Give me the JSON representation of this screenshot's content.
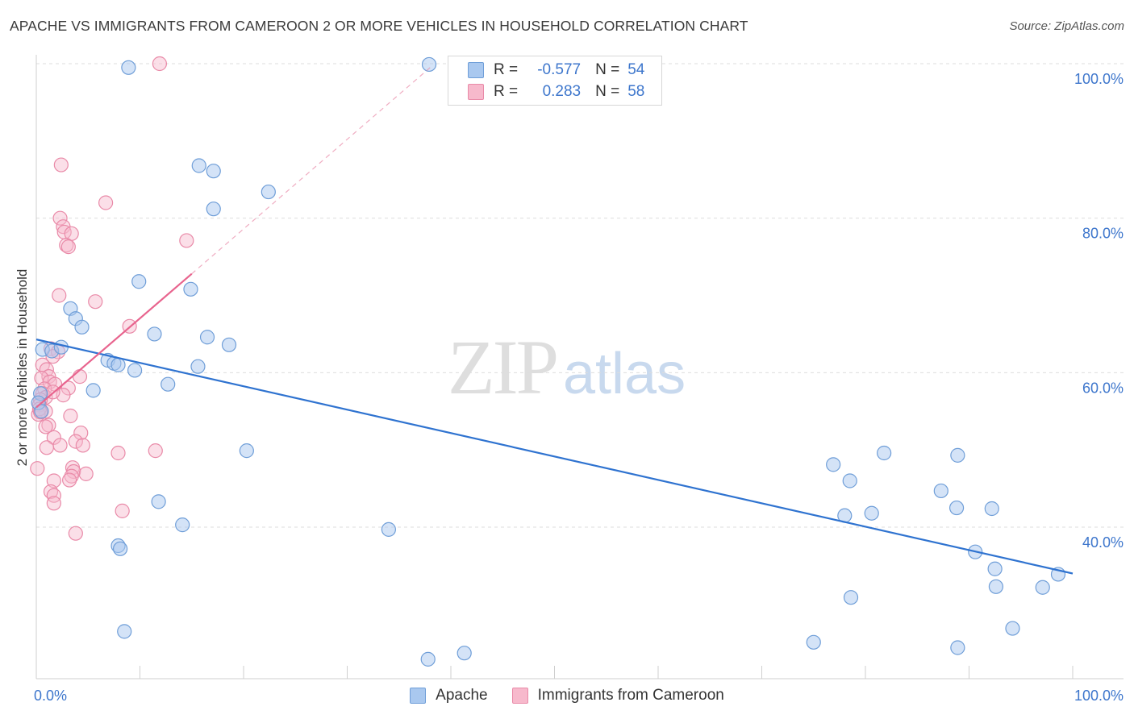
{
  "title": "APACHE VS IMMIGRANTS FROM CAMEROON 2 OR MORE VEHICLES IN HOUSEHOLD CORRELATION CHART",
  "source": "Source: ZipAtlas.com",
  "watermark": {
    "zip": "ZIP",
    "atlas": "atlas"
  },
  "colors": {
    "apache_fill": "#a9c8ef",
    "apache_stroke": "#6f9ed8",
    "apache_line": "#2f73d0",
    "cameroon_fill": "#f7b9cc",
    "cameroon_stroke": "#e98aa8",
    "cameroon_line": "#e8648e",
    "tick_text": "#3d76cc",
    "grid": "#dddddd"
  },
  "legend": {
    "rows": [
      {
        "r_label": "R =",
        "r_value": "-0.577",
        "n_label": "N =",
        "n_value": "54"
      },
      {
        "r_label": "R =",
        "r_value": "0.283",
        "n_label": "N =",
        "n_value": "58"
      }
    ]
  },
  "bottom_legend": {
    "apache": "Apache",
    "cameroon": "Immigrants from Cameroon"
  },
  "chart_data": {
    "type": "scatter",
    "title": "APACHE VS IMMIGRANTS FROM CAMEROON 2 OR MORE VEHICLES IN HOUSEHOLD CORRELATION CHART",
    "xlabel": "",
    "ylabel": "2 or more Vehicles in Household",
    "xlim": [
      0,
      100
    ],
    "ylim": [
      20,
      102
    ],
    "x_ticks": [
      0,
      10,
      20,
      30,
      40,
      50,
      60,
      70,
      80,
      90,
      100
    ],
    "x_tick_labels": [
      "0.0%",
      "100.0%"
    ],
    "y_ticks": [
      40,
      60,
      80,
      100
    ],
    "y_tick_labels": [
      "40.0%",
      "60.0%",
      "80.0%",
      "100.0%"
    ],
    "grid": "horizontal dashed",
    "legend_position": "top-center",
    "series": [
      {
        "name": "Apache",
        "r": -0.577,
        "n": 54,
        "trend": {
          "x": [
            0,
            100
          ],
          "y": [
            64.3,
            34.0
          ]
        },
        "points": [
          [
            8.9,
            99.5
          ],
          [
            37.9,
            99.9
          ],
          [
            15.7,
            86.8
          ],
          [
            17.1,
            86.1
          ],
          [
            22.4,
            83.4
          ],
          [
            17.1,
            81.2
          ],
          [
            9.9,
            71.8
          ],
          [
            14.9,
            70.8
          ],
          [
            3.3,
            68.3
          ],
          [
            3.8,
            67.0
          ],
          [
            4.4,
            65.9
          ],
          [
            11.4,
            65.0
          ],
          [
            16.5,
            64.6
          ],
          [
            18.6,
            63.6
          ],
          [
            0.6,
            63.0
          ],
          [
            1.5,
            62.8
          ],
          [
            2.4,
            63.3
          ],
          [
            6.9,
            61.6
          ],
          [
            7.5,
            61.2
          ],
          [
            7.9,
            61.0
          ],
          [
            9.5,
            60.3
          ],
          [
            15.6,
            60.8
          ],
          [
            12.7,
            58.5
          ],
          [
            5.5,
            57.7
          ],
          [
            0.4,
            57.3
          ],
          [
            0.2,
            56.1
          ],
          [
            0.5,
            55.0
          ],
          [
            20.3,
            49.9
          ],
          [
            11.8,
            43.3
          ],
          [
            14.1,
            40.3
          ],
          [
            34.0,
            39.7
          ],
          [
            7.9,
            37.6
          ],
          [
            8.1,
            37.2
          ],
          [
            8.5,
            26.5
          ],
          [
            37.8,
            22.9
          ],
          [
            41.3,
            23.7
          ],
          [
            75.0,
            25.1
          ],
          [
            76.9,
            48.1
          ],
          [
            78.5,
            46.0
          ],
          [
            81.8,
            49.6
          ],
          [
            78.0,
            41.5
          ],
          [
            80.6,
            41.8
          ],
          [
            87.3,
            44.7
          ],
          [
            88.9,
            49.3
          ],
          [
            88.8,
            42.5
          ],
          [
            92.2,
            42.4
          ],
          [
            90.6,
            36.8
          ],
          [
            92.5,
            34.6
          ],
          [
            92.6,
            32.3
          ],
          [
            97.1,
            32.2
          ],
          [
            98.6,
            33.9
          ],
          [
            94.2,
            26.9
          ],
          [
            88.9,
            24.4
          ],
          [
            78.6,
            30.9
          ]
        ]
      },
      {
        "name": "Immigrants from Cameroon",
        "r": 0.283,
        "n": 58,
        "trend": {
          "x": [
            0,
            15
          ],
          "y": [
            55.5,
            72.8
          ]
        },
        "trend_extension": {
          "x": [
            15,
            38
          ],
          "y": [
            72.8,
            99.5
          ]
        },
        "points": [
          [
            11.9,
            100.0
          ],
          [
            2.4,
            86.9
          ],
          [
            6.7,
            82.0
          ],
          [
            2.3,
            80.0
          ],
          [
            2.6,
            78.9
          ],
          [
            2.7,
            78.2
          ],
          [
            3.4,
            78.0
          ],
          [
            2.9,
            76.5
          ],
          [
            3.1,
            76.3
          ],
          [
            14.5,
            77.1
          ],
          [
            2.2,
            70.0
          ],
          [
            5.7,
            69.2
          ],
          [
            9.0,
            66.0
          ],
          [
            1.4,
            63.1
          ],
          [
            2.1,
            62.7
          ],
          [
            1.6,
            62.1
          ],
          [
            0.6,
            61.0
          ],
          [
            1.0,
            60.4
          ],
          [
            1.2,
            59.5
          ],
          [
            0.5,
            59.3
          ],
          [
            4.2,
            59.5
          ],
          [
            1.3,
            58.8
          ],
          [
            1.8,
            58.5
          ],
          [
            3.1,
            58.0
          ],
          [
            0.8,
            57.9
          ],
          [
            0.6,
            57.3
          ],
          [
            2.6,
            57.1
          ],
          [
            0.9,
            56.8
          ],
          [
            0.4,
            56.5
          ],
          [
            0.3,
            55.8
          ],
          [
            0.9,
            55.0
          ],
          [
            0.2,
            54.6
          ],
          [
            1.2,
            53.2
          ],
          [
            0.9,
            53.0
          ],
          [
            3.3,
            54.4
          ],
          [
            4.3,
            52.2
          ],
          [
            3.8,
            51.1
          ],
          [
            1.7,
            51.6
          ],
          [
            4.5,
            50.6
          ],
          [
            2.3,
            50.6
          ],
          [
            1.0,
            50.3
          ],
          [
            7.9,
            49.6
          ],
          [
            11.5,
            49.9
          ],
          [
            0.1,
            47.6
          ],
          [
            3.5,
            47.7
          ],
          [
            3.6,
            47.2
          ],
          [
            4.8,
            46.9
          ],
          [
            1.7,
            46.0
          ],
          [
            3.4,
            46.6
          ],
          [
            3.2,
            46.1
          ],
          [
            1.4,
            44.6
          ],
          [
            1.7,
            44.1
          ],
          [
            1.7,
            43.1
          ],
          [
            8.3,
            42.1
          ],
          [
            3.8,
            39.2
          ],
          [
            0.3,
            55.3
          ],
          [
            0.4,
            54.9
          ],
          [
            1.6,
            57.5
          ]
        ]
      }
    ]
  }
}
